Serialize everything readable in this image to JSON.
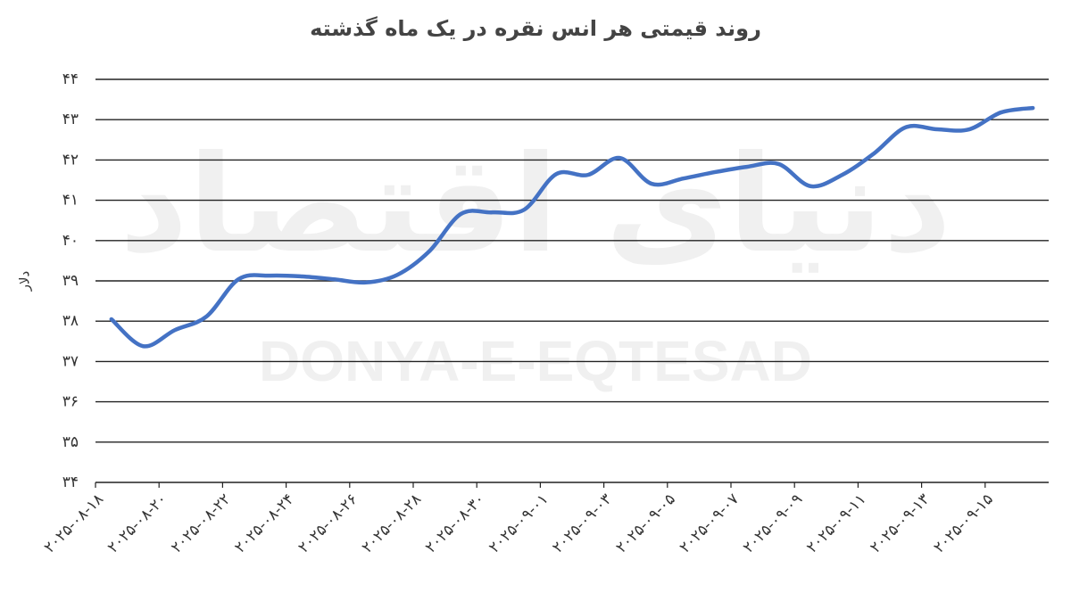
{
  "chart_data": {
    "type": "line",
    "title": "روند قیمتی هر انس نقره در یک ماه گذشته",
    "y_label": "دلار",
    "watermark": [
      "دنیای اقتصاد",
      "DONYA-E-EQTESAD"
    ],
    "categories": [
      "۲۰۲۵-۰۸-۱۸",
      null,
      "۲۰۲۵-۰۸-۲۰",
      null,
      "۲۰۲۵-۰۸-۲۲",
      null,
      "۲۰۲۵-۰۸-۲۴",
      null,
      "۲۰۲۵-۰۸-۲۶",
      null,
      "۲۰۲۵-۰۸-۲۸",
      null,
      "۲۰۲۵-۰۸-۳۰",
      null,
      "۲۰۲۵-۰۹-۰۱",
      null,
      "۲۰۲۵-۰۹-۰۳",
      null,
      "۲۰۲۵-۰۹-۰۵",
      null,
      "۲۰۲۵-۰۹-۰۷",
      null,
      "۲۰۲۵-۰۹-۰۹",
      null,
      "۲۰۲۵-۰۹-۱۱",
      null,
      "۲۰۲۵-۰۹-۱۳",
      null,
      "۲۰۲۵-۰۹-۱۵",
      null
    ],
    "series": [
      {
        "color": "#4472c4",
        "values": [
          38.05,
          37.38,
          37.78,
          38.12,
          39.04,
          39.13,
          39.11,
          39.04,
          38.96,
          39.15,
          39.73,
          40.66,
          40.7,
          40.77,
          41.65,
          41.63,
          42.05,
          41.41,
          41.54,
          41.7,
          41.83,
          41.9,
          41.35,
          41.63,
          42.16,
          42.81,
          42.76,
          42.76,
          43.18,
          43.29
        ]
      }
    ],
    "ylim": [
      34,
      44
    ],
    "yticks": [
      {
        "value": 34,
        "label": "۳۴"
      },
      {
        "value": 35,
        "label": "۳۵"
      },
      {
        "value": 36,
        "label": "۳۶"
      },
      {
        "value": 37,
        "label": "۳۷"
      },
      {
        "value": 38,
        "label": "۳۸"
      },
      {
        "value": 39,
        "label": "۳۹"
      },
      {
        "value": 40,
        "label": "۴۰"
      },
      {
        "value": 41,
        "label": "۴۱"
      },
      {
        "value": 42,
        "label": "۴۲"
      },
      {
        "value": 43,
        "label": "۴۳"
      },
      {
        "value": 44,
        "label": "۴۴"
      }
    ],
    "grid": true
  }
}
